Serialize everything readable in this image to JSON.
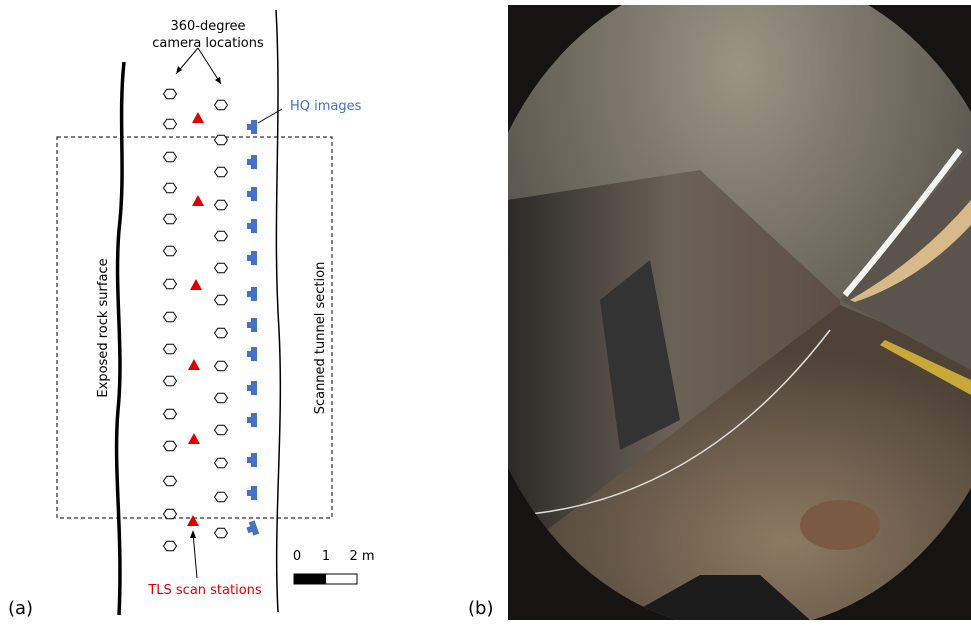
{
  "panel_a": {
    "label": "(a)",
    "camera_label_line1": "360-degree",
    "camera_label_line2": "camera locations",
    "hq_label": "HQ images",
    "rock_label": "Exposed rock surface",
    "tunnel_label": "Scanned tunnel section",
    "tls_label": "TLS scan stations",
    "scale_ticks": [
      "0",
      "1",
      "2 m"
    ]
  },
  "panel_b": {
    "label": "(b)"
  }
}
